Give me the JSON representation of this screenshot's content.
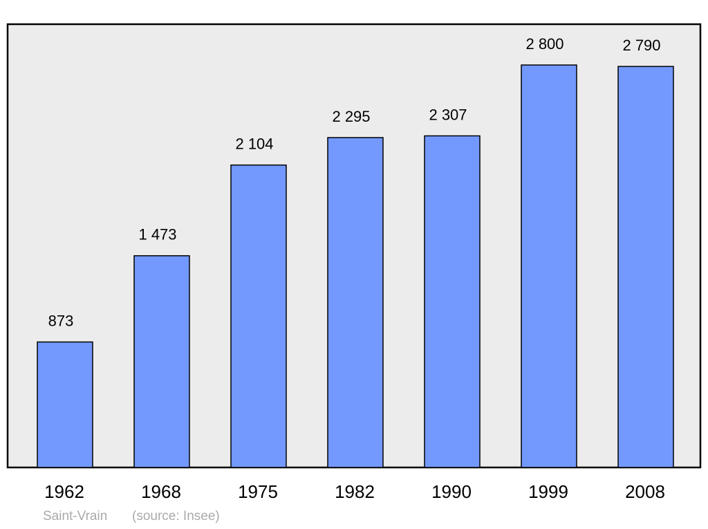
{
  "chart_data": {
    "type": "bar",
    "title": "Saint-Vrain",
    "source": "(source: Insee)",
    "categories": [
      "1962",
      "1968",
      "1975",
      "1982",
      "1990",
      "1999",
      "2008"
    ],
    "values": [
      873,
      1473,
      2104,
      2295,
      2307,
      2800,
      2790
    ],
    "value_labels": [
      "873",
      "1 473",
      "2 104",
      "2 295",
      "2 307",
      "2 800",
      "2 790"
    ],
    "color": "#7399ff"
  }
}
